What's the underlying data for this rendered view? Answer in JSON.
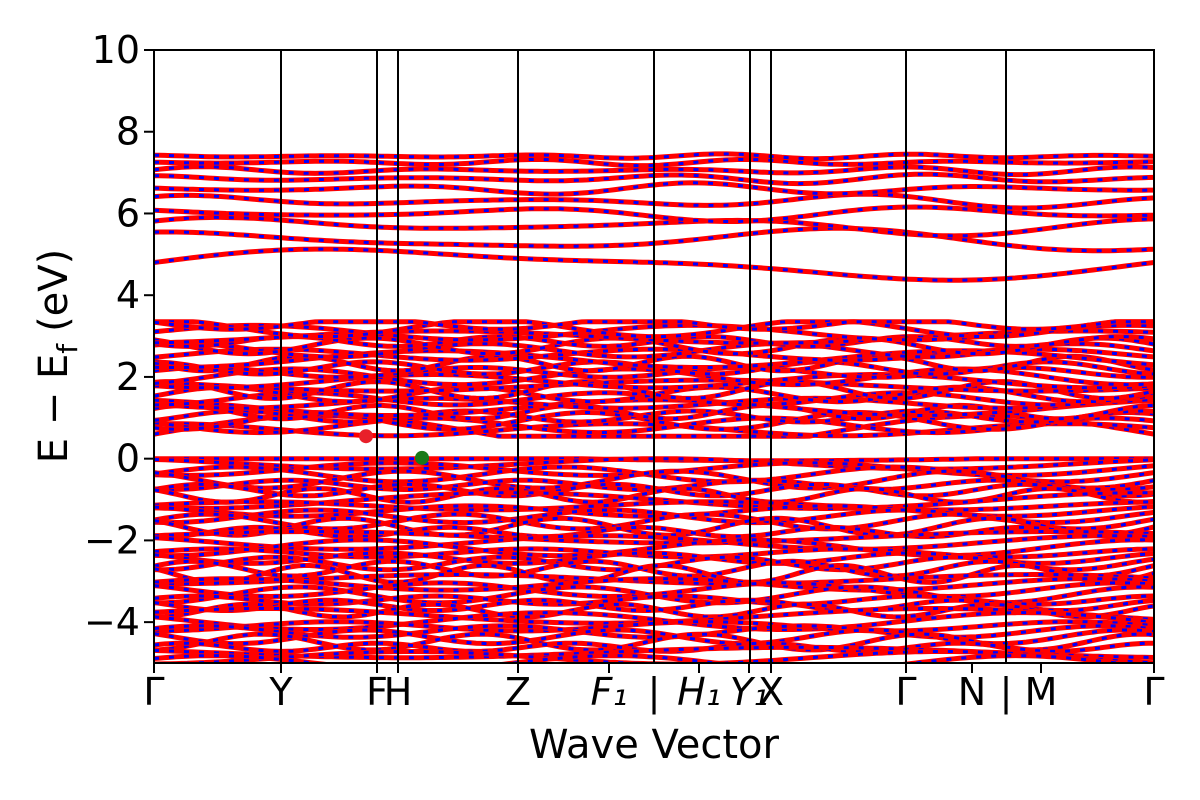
{
  "chart_data": {
    "type": "line",
    "title": "",
    "xlabel": "Wave Vector",
    "ylabel": "E − E",
    "ylabel_sub": "f",
    "ylabel_unit": "(eV)",
    "ylim": [
      -5,
      10
    ],
    "yticks": [
      -4,
      -2,
      0,
      2,
      4,
      6,
      8,
      10
    ],
    "ytick_labels": [
      "−4",
      "−2",
      "0",
      "2",
      "4",
      "6",
      "8",
      "10"
    ],
    "xlim": [
      0,
      1
    ],
    "kpath_ticks": [
      {
        "pos": 0.0,
        "label": "Γ"
      },
      {
        "pos": 0.127,
        "label": "Y"
      },
      {
        "pos": 0.223,
        "label": "F"
      },
      {
        "pos": 0.244,
        "label": "H"
      },
      {
        "pos": 0.364,
        "label": "Z"
      },
      {
        "pos": 0.455,
        "label": "F₁",
        "italic": true
      },
      {
        "pos": 0.5,
        "label": "|"
      },
      {
        "pos": 0.545,
        "label": "H₁",
        "italic": true
      },
      {
        "pos": 0.595,
        "label": "Y₁",
        "italic": true
      },
      {
        "pos": 0.617,
        "label": "X"
      },
      {
        "pos": 0.752,
        "label": "Γ"
      },
      {
        "pos": 0.818,
        "label": "N"
      },
      {
        "pos": 0.852,
        "label": "|"
      },
      {
        "pos": 0.887,
        "label": "M"
      },
      {
        "pos": 1.0,
        "label": "Γ"
      }
    ],
    "kpath_vlines": [
      0.127,
      0.223,
      0.244,
      0.364,
      0.5,
      0.596,
      0.617,
      0.752,
      0.852
    ],
    "series": [
      {
        "name": "",
        "color": "#ff0000",
        "style": "solid"
      },
      {
        "name": "",
        "color": "#0000ff",
        "style": "dashed"
      }
    ],
    "conduction_band_minimum": {
      "k": 0.212,
      "energy": 0.55,
      "color": "#e8202a"
    },
    "valence_band_maximum": {
      "k": 0.268,
      "energy": 0.02,
      "color": "#1a7a1a"
    },
    "band_groups": {
      "upper_conduction": [
        {
          "energy": 4.8,
          "amp": 0.5,
          "freq": 1.0,
          "phase": 0.0
        },
        {
          "energy": 5.3,
          "amp": 0.35,
          "freq": 1.6,
          "phase": 1.1
        },
        {
          "energy": 5.7,
          "amp": 0.25,
          "freq": 2.1,
          "phase": 0.5
        },
        {
          "energy": 6.0,
          "amp": 0.2,
          "freq": 2.5,
          "phase": 2.0
        },
        {
          "energy": 6.3,
          "amp": 0.18,
          "freq": 3.0,
          "phase": 0.8
        },
        {
          "energy": 6.6,
          "amp": 0.15,
          "freq": 3.4,
          "phase": 2.6
        },
        {
          "energy": 6.85,
          "amp": 0.12,
          "freq": 3.9,
          "phase": 1.5
        },
        {
          "energy": 7.05,
          "amp": 0.1,
          "freq": 4.3,
          "phase": 0.2
        },
        {
          "energy": 7.25,
          "amp": 0.08,
          "freq": 4.7,
          "phase": 2.9
        },
        {
          "energy": 7.4,
          "amp": 0.06,
          "freq": 5.2,
          "phase": 1.9
        }
      ],
      "conduction_block": {
        "min": 0.6,
        "max": 3.3,
        "count": 26
      },
      "valence_block": {
        "min": -5.0,
        "max": 0.0,
        "count": 40
      }
    }
  }
}
